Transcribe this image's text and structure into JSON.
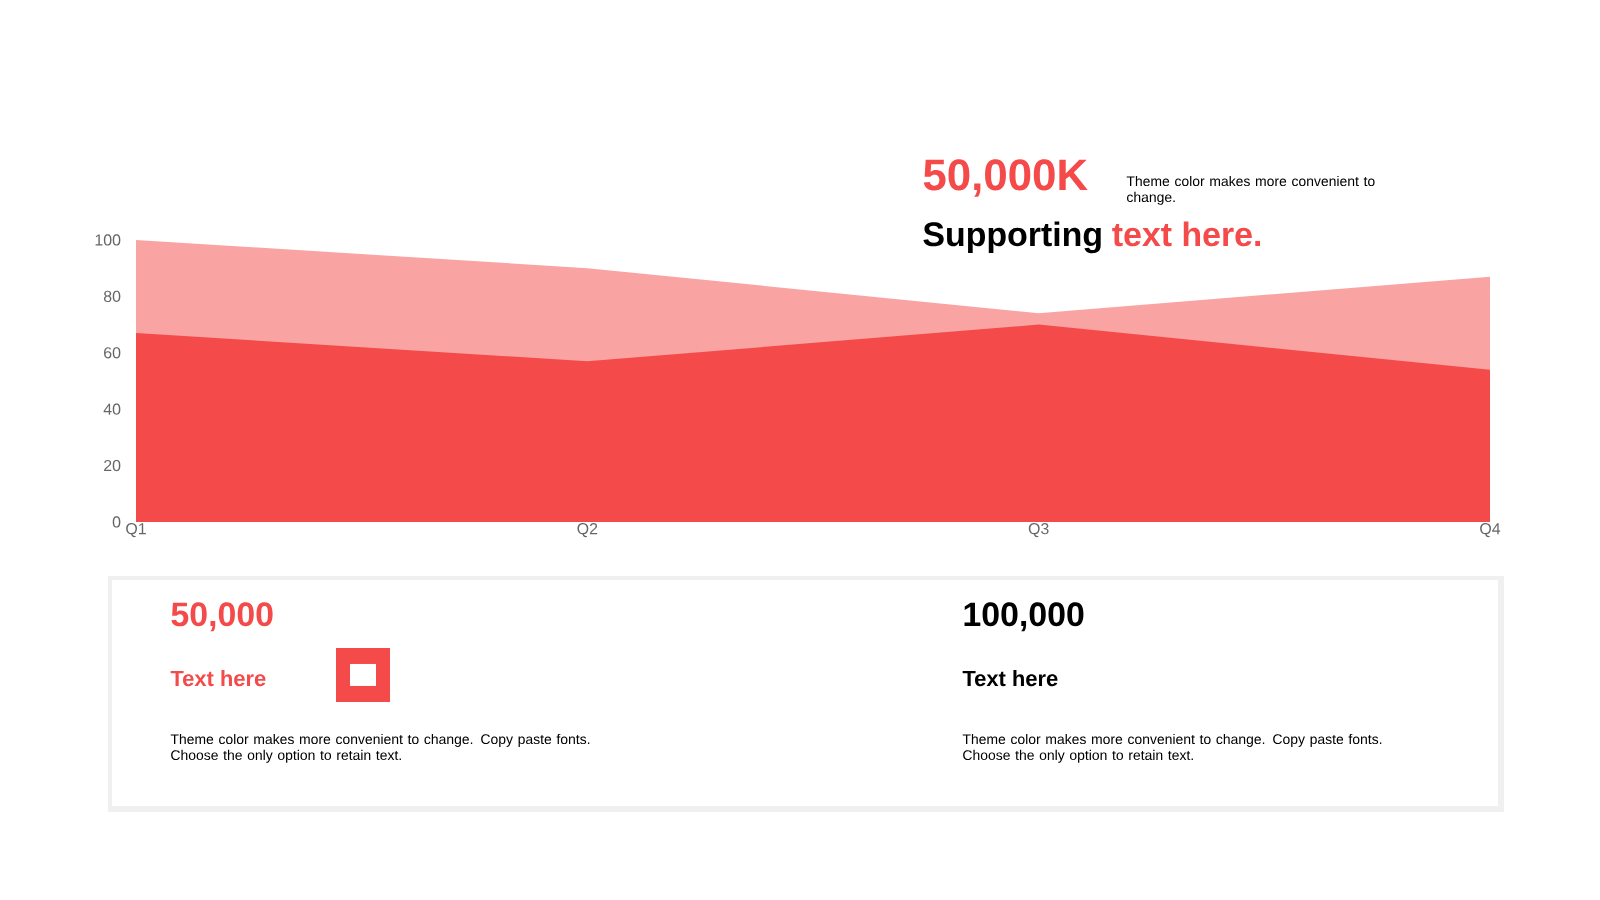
{
  "chart_data": {
    "type": "area",
    "categories": [
      "Q1",
      "Q2",
      "Q3",
      "Q4"
    ],
    "series": [
      {
        "color": "#f9a3a3",
        "values": [
          100,
          90,
          74,
          87
        ]
      },
      {
        "color": "#f44a4a",
        "values": [
          67,
          57,
          70,
          54
        ]
      }
    ],
    "ylim": [
      0,
      100
    ],
    "yticks": [
      0,
      20,
      40,
      60,
      80,
      100
    ],
    "grid": false,
    "annotations": [
      "50,000K",
      "Theme color makes more convenient to change.",
      "Supporting",
      "text here.",
      "50,000",
      "Text here",
      "Theme color makes more convenient to change. Copy paste fonts. Choose the only option to retain text.",
      "100,000",
      "Text here",
      "Theme color makes more convenient to change. Copy paste fonts. Choose the only option to retain text."
    ]
  }
}
